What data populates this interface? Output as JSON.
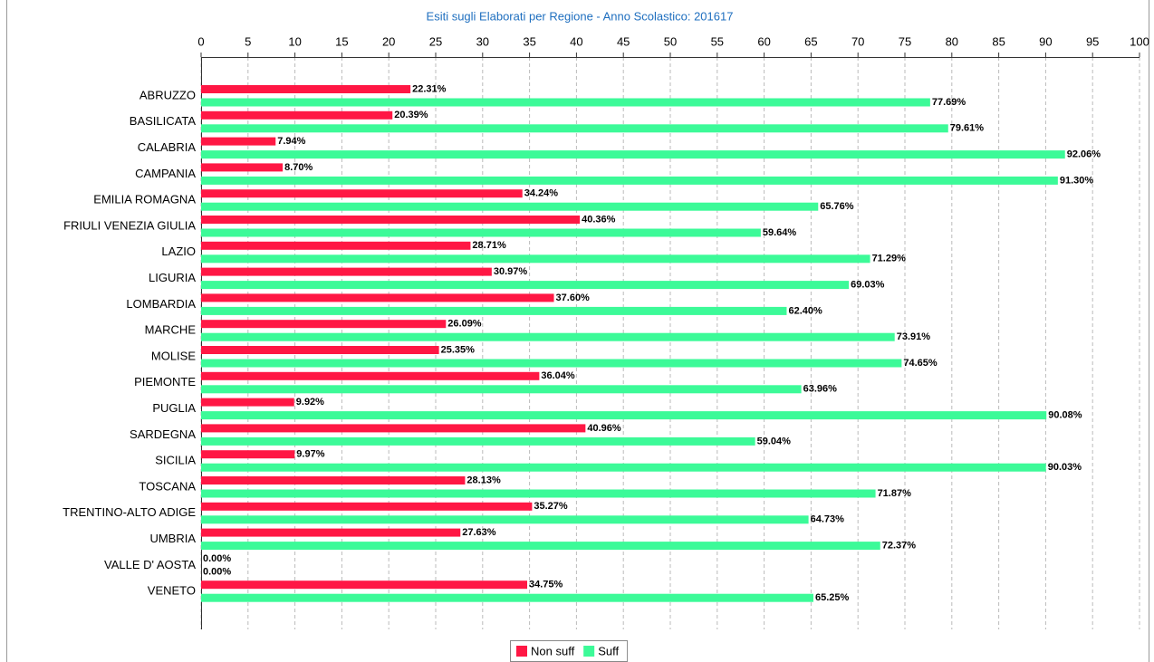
{
  "chart_data": {
    "type": "hbar",
    "title": "Esiti sugli Elaborati per Regione - Anno Scolastico: 201617",
    "categories": [
      "ABRUZZO",
      "BASILICATA",
      "CALABRIA",
      "CAMPANIA",
      "EMILIA ROMAGNA",
      "FRIULI VENEZIA GIULIA",
      "LAZIO",
      "LIGURIA",
      "LOMBARDIA",
      "MARCHE",
      "MOLISE",
      "PIEMONTE",
      "PUGLIA",
      "SARDEGNA",
      "SICILIA",
      "TOSCANA",
      "TRENTINO-ALTO ADIGE",
      "UMBRIA",
      "VALLE D' AOSTA",
      "VENETO"
    ],
    "series": [
      {
        "name": "Non suff",
        "color": "#ff1744",
        "values": [
          22.31,
          20.39,
          7.94,
          8.7,
          34.24,
          40.36,
          28.71,
          30.97,
          37.6,
          26.09,
          25.35,
          36.04,
          9.92,
          40.96,
          9.97,
          28.13,
          35.27,
          27.63,
          0.0,
          34.75
        ],
        "value_labels": [
          "22.31%",
          "20.39%",
          "7.94%",
          "8.70%",
          "34.24%",
          "40.36%",
          "28.71%",
          "30.97%",
          "37.60%",
          "26.09%",
          "25.35%",
          "36.04%",
          "9.92%",
          "40.96%",
          "9.97%",
          "28.13%",
          "35.27%",
          "27.63%",
          "0.00%",
          "34.75%"
        ]
      },
      {
        "name": "Suff",
        "color": "#3cfa98",
        "values": [
          77.69,
          79.61,
          92.06,
          91.3,
          65.76,
          59.64,
          71.29,
          69.03,
          62.4,
          73.91,
          74.65,
          63.96,
          90.08,
          59.04,
          90.03,
          71.87,
          64.73,
          72.37,
          0.0,
          65.25
        ],
        "value_labels": [
          "77.69%",
          "79.61%",
          "92.06%",
          "91.30%",
          "65.76%",
          "59.64%",
          "71.29%",
          "69.03%",
          "62.40%",
          "73.91%",
          "74.65%",
          "63.96%",
          "90.08%",
          "59.04%",
          "90.03%",
          "71.87%",
          "64.73%",
          "72.37%",
          "0.00%",
          "65.25%"
        ]
      }
    ],
    "xlim": [
      0,
      100
    ],
    "xticks": [
      0,
      5,
      10,
      15,
      20,
      25,
      30,
      35,
      40,
      45,
      50,
      55,
      60,
      65,
      70,
      75,
      80,
      85,
      90,
      95,
      100
    ],
    "grid": true,
    "legend": "bottom"
  }
}
